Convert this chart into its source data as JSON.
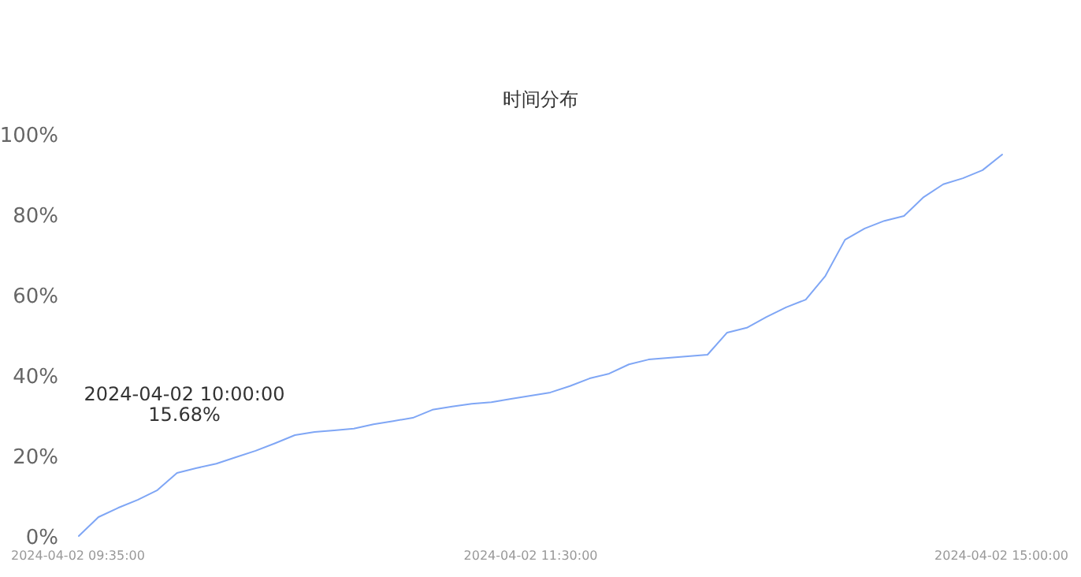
{
  "chart_data": {
    "type": "line",
    "title": "时间分布",
    "annotations": [
      "2024-04-02 10:00:00",
      "15.68%"
    ],
    "categories": [
      "2024-04-02 09:35:00",
      null,
      null,
      null,
      null,
      null,
      null,
      null,
      null,
      null,
      null,
      null,
      null,
      null,
      null,
      null,
      null,
      null,
      null,
      null,
      null,
      null,
      null,
      "2024-04-02 11:30:00",
      null,
      null,
      null,
      null,
      null,
      null,
      null,
      null,
      null,
      null,
      null,
      null,
      null,
      null,
      null,
      null,
      null,
      null,
      null,
      null,
      null,
      null,
      null,
      "2024-04-02 15:00:00"
    ],
    "series": [
      {
        "color": "#7fa6f5",
        "values": [
          0,
          4.7,
          7,
          9,
          11.4,
          15.68,
          16.9,
          18,
          19.6,
          21.2,
          23.1,
          25.1,
          25.9,
          26.3,
          26.7,
          27.8,
          28.6,
          29.4,
          31.4,
          32.2,
          32.9,
          33.3,
          34.1,
          34.9,
          35.7,
          37.3,
          39.2,
          40.4,
          42.7,
          43.9,
          44.3,
          44.7,
          45.1,
          50.6,
          51.8,
          54.5,
          56.9,
          58.8,
          64.7,
          73.7,
          76.5,
          78.4,
          79.6,
          84.3,
          87.5,
          89,
          91,
          94.9
        ]
      }
    ],
    "ylim": [
      0,
      100
    ],
    "yticks": [
      {
        "value": 0,
        "label": "0%"
      },
      {
        "value": 20,
        "label": "20%"
      },
      {
        "value": 40,
        "label": "40%"
      },
      {
        "value": 60,
        "label": "60%"
      },
      {
        "value": 80,
        "label": "80%"
      },
      {
        "value": 100,
        "label": "100%"
      }
    ],
    "grid": false,
    "marker": "none",
    "line_style": "solid"
  }
}
